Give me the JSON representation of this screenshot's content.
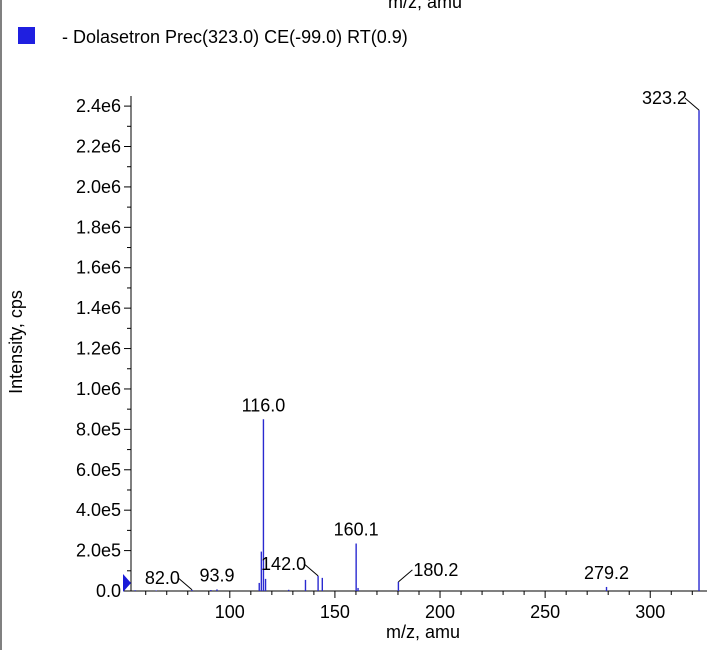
{
  "header": {
    "cut_axis_title": "m/z, amu"
  },
  "legend": {
    "label": "- Dolasetron Prec(323.0) CE(-99.0) RT(0.9)",
    "swatch_color": "#1f1fe0"
  },
  "chart_data": {
    "type": "bar",
    "title": "",
    "xlabel": "m/z, amu",
    "ylabel": "Intensity, cps",
    "xlim": [
      53,
      327
    ],
    "ylim": [
      0,
      2450000
    ],
    "legend_position": "top-left",
    "grid": false,
    "bar_color": "#2a2ad0",
    "x_ticks": [
      {
        "value": 100,
        "label": "100"
      },
      {
        "value": 150,
        "label": "150"
      },
      {
        "value": 200,
        "label": "200"
      },
      {
        "value": 250,
        "label": "250"
      },
      {
        "value": 300,
        "label": "300"
      }
    ],
    "y_ticks": [
      {
        "value": 0,
        "label": "0.0"
      },
      {
        "value": 200000,
        "label": "2.0e5"
      },
      {
        "value": 400000,
        "label": "4.0e5"
      },
      {
        "value": 600000,
        "label": "6.0e5"
      },
      {
        "value": 800000,
        "label": "8.0e5"
      },
      {
        "value": 1000000,
        "label": "1.0e6"
      },
      {
        "value": 1200000,
        "label": "1.2e6"
      },
      {
        "value": 1400000,
        "label": "1.4e6"
      },
      {
        "value": 1600000,
        "label": "1.6e6"
      },
      {
        "value": 1800000,
        "label": "1.8e6"
      },
      {
        "value": 2000000,
        "label": "2.0e6"
      },
      {
        "value": 2200000,
        "label": "2.2e6"
      },
      {
        "value": 2400000,
        "label": "2.4e6"
      }
    ],
    "peaks": [
      {
        "mz": 55.0,
        "intensity": 4000
      },
      {
        "mz": 65.0,
        "intensity": 3000
      },
      {
        "mz": 82.0,
        "intensity": 6000
      },
      {
        "mz": 91.0,
        "intensity": 5000
      },
      {
        "mz": 93.9,
        "intensity": 8000
      },
      {
        "mz": 114.0,
        "intensity": 40000
      },
      {
        "mz": 115.0,
        "intensity": 195000
      },
      {
        "mz": 116.0,
        "intensity": 850000
      },
      {
        "mz": 117.0,
        "intensity": 60000
      },
      {
        "mz": 128.0,
        "intensity": 6000
      },
      {
        "mz": 136.0,
        "intensity": 55000
      },
      {
        "mz": 142.0,
        "intensity": 75000
      },
      {
        "mz": 144.0,
        "intensity": 65000
      },
      {
        "mz": 160.1,
        "intensity": 235000
      },
      {
        "mz": 161.0,
        "intensity": 15000
      },
      {
        "mz": 180.2,
        "intensity": 45000
      },
      {
        "mz": 279.2,
        "intensity": 20000
      },
      {
        "mz": 323.2,
        "intensity": 2380000
      }
    ],
    "peak_labels": [
      {
        "mz": 82.0,
        "text": "82.0",
        "leader": true
      },
      {
        "mz": 93.9,
        "text": "93.9",
        "leader": false
      },
      {
        "mz": 116.0,
        "text": "116.0",
        "leader": false
      },
      {
        "mz": 142.0,
        "text": "142.0",
        "leader": true
      },
      {
        "mz": 160.1,
        "text": "160.1",
        "leader": false
      },
      {
        "mz": 180.2,
        "text": "180.2",
        "leader": true
      },
      {
        "mz": 279.2,
        "text": "279.2",
        "leader": false
      },
      {
        "mz": 323.2,
        "text": "323.2",
        "leader": true
      }
    ]
  }
}
